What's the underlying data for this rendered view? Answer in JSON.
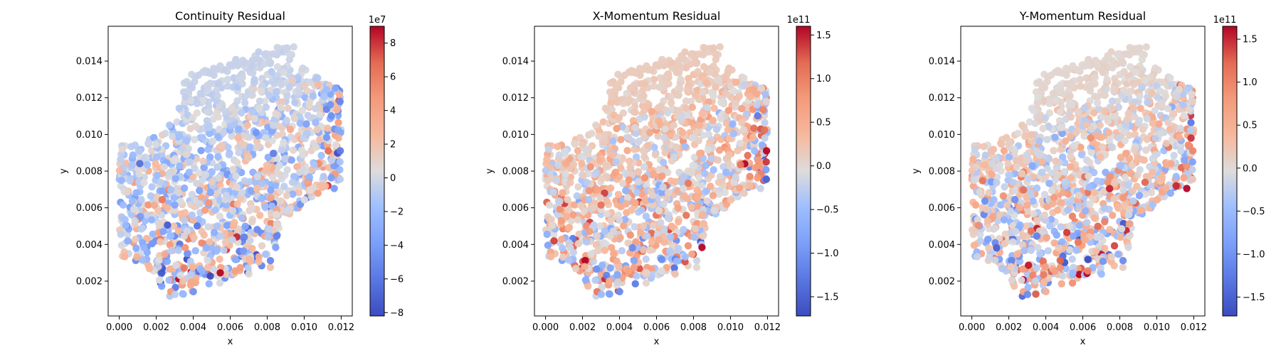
{
  "chart_data": [
    {
      "type": "scatter",
      "title": "Continuity Residual",
      "xlabel": "x",
      "ylabel": "y",
      "xlim": [
        -0.0006,
        0.0126
      ],
      "ylim": [
        0.0001,
        0.0159
      ],
      "xticks": [
        "0.000",
        "0.002",
        "0.004",
        "0.006",
        "0.008",
        "0.010",
        "0.012"
      ],
      "yticks": [
        "0.002",
        "0.004",
        "0.006",
        "0.008",
        "0.010",
        "0.012",
        "0.014"
      ],
      "colormap": "coolwarm",
      "colorbar": {
        "min": -8.2,
        "max": 9.0,
        "exponent_label": "1e7",
        "ticks": [
          -8,
          -6,
          -4,
          -2,
          0,
          2,
          4,
          6,
          8
        ],
        "tick_labels": [
          "−8",
          "−6",
          "−4",
          "−2",
          "0",
          "2",
          "4",
          "6",
          "8"
        ]
      },
      "grid": false
    },
    {
      "type": "scatter",
      "title": "X-Momentum Residual",
      "xlabel": "x",
      "ylabel": "y",
      "xlim": [
        -0.0006,
        0.0126
      ],
      "ylim": [
        0.0001,
        0.0159
      ],
      "xticks": [
        "0.000",
        "0.002",
        "0.004",
        "0.006",
        "0.008",
        "0.010",
        "0.012"
      ],
      "yticks": [
        "0.002",
        "0.004",
        "0.006",
        "0.008",
        "0.010",
        "0.012",
        "0.014"
      ],
      "colormap": "coolwarm",
      "colorbar": {
        "min": -1.72,
        "max": 1.6,
        "exponent_label": "1e11",
        "ticks": [
          -1.5,
          -1.0,
          -0.5,
          0.0,
          0.5,
          1.0,
          1.5
        ],
        "tick_labels": [
          "−1.5",
          "−1.0",
          "−0.5",
          "0.0",
          "0.5",
          "1.0",
          "1.5"
        ]
      },
      "grid": false
    },
    {
      "type": "scatter",
      "title": "Y-Momentum Residual",
      "xlabel": "x",
      "ylabel": "y",
      "xlim": [
        -0.0006,
        0.0126
      ],
      "ylim": [
        0.0001,
        0.0159
      ],
      "xticks": [
        "0.000",
        "0.002",
        "0.004",
        "0.006",
        "0.008",
        "0.010",
        "0.012"
      ],
      "yticks": [
        "0.002",
        "0.004",
        "0.006",
        "0.008",
        "0.010",
        "0.012",
        "0.014"
      ],
      "colormap": "coolwarm",
      "colorbar": {
        "min": -1.72,
        "max": 1.65,
        "exponent_label": "1e11",
        "ticks": [
          -1.5,
          -1.0,
          -0.5,
          0.0,
          0.5,
          1.0,
          1.5
        ],
        "tick_labels": [
          "−1.5",
          "−1.0",
          "−0.5",
          "0.0",
          "0.5",
          "1.0",
          "1.5"
        ]
      },
      "grid": false
    }
  ],
  "domain_shape": {
    "outline_vertices": [
      [
        0.0,
        0.0028
      ],
      [
        0.0024,
        0.0009
      ],
      [
        0.0093,
        0.0031
      ],
      [
        0.012,
        0.0067
      ],
      [
        0.012,
        0.0132
      ],
      [
        0.0096,
        0.0152
      ],
      [
        0.0027,
        0.0129
      ],
      [
        0.0,
        0.0094
      ]
    ],
    "corner_cutouts": [
      {
        "center": [
          0.0,
          0.0009
        ],
        "radius": 0.0024
      },
      {
        "center": [
          0.012,
          0.0031
        ],
        "radius": 0.0036
      },
      {
        "center": [
          0.012,
          0.0152
        ],
        "radius": 0.0024
      },
      {
        "center": [
          0.0,
          0.0129
        ],
        "radius": 0.0035
      }
    ]
  },
  "colors": {
    "cmap_low": "#3b4cc0",
    "cmap_mid": "#dddddd",
    "cmap_high": "#b40426"
  }
}
